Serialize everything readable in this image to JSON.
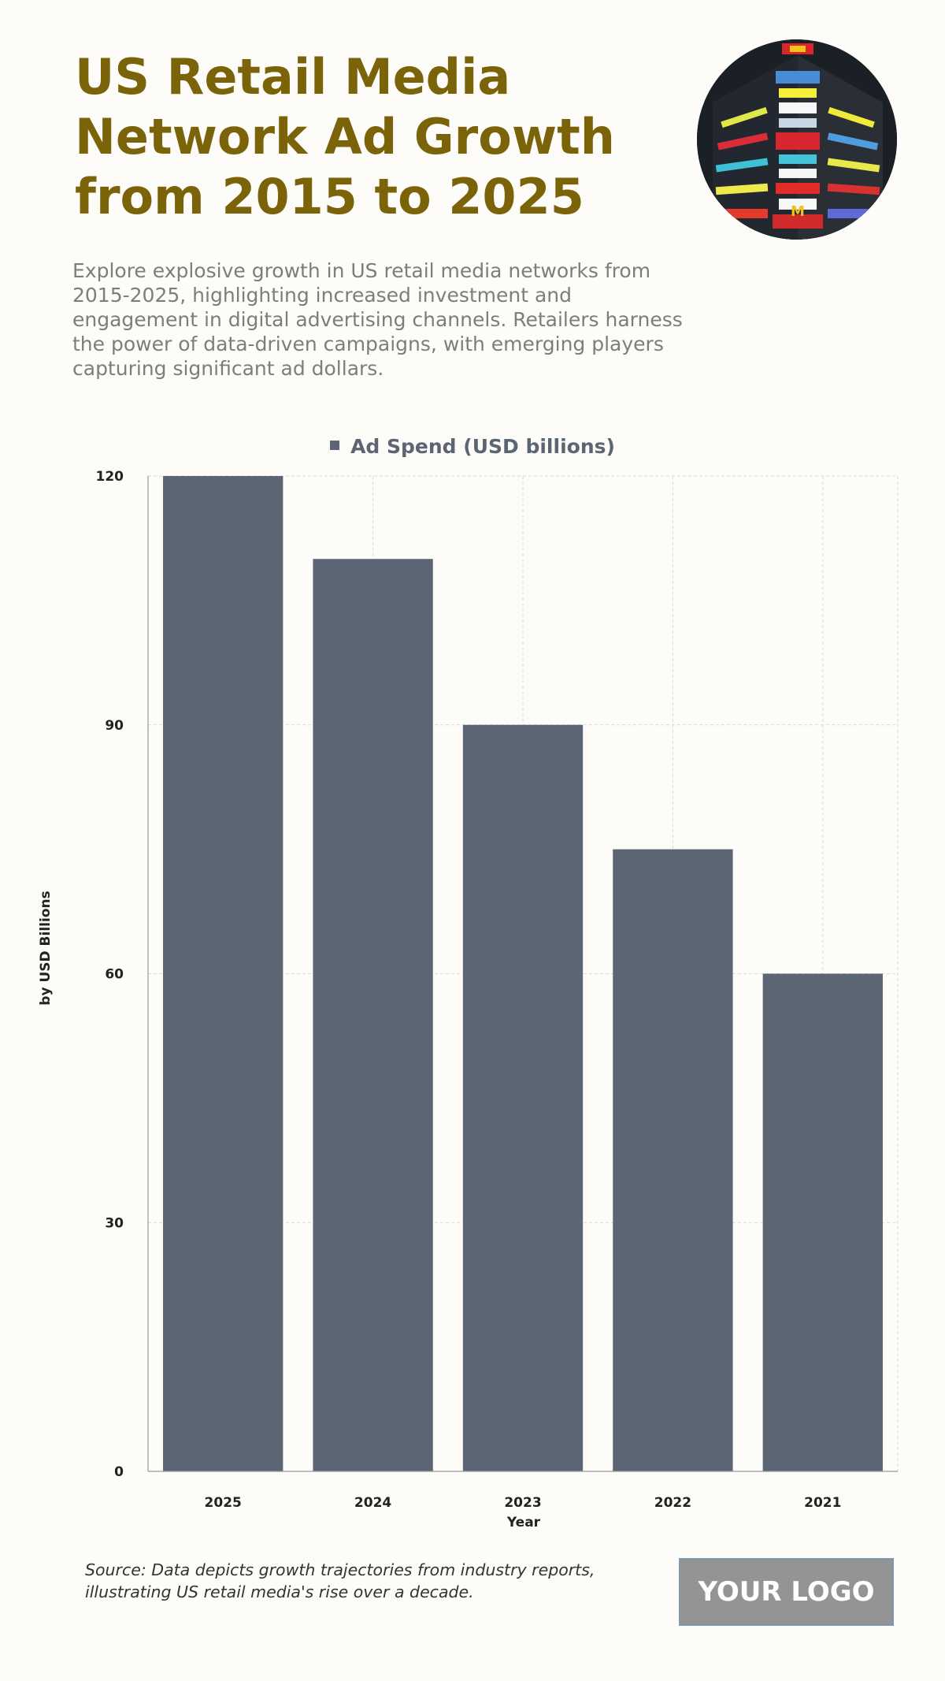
{
  "header": {
    "title": "US Retail Media Network Ad Growth from 2015 to 2025",
    "description": "Explore explosive growth in US retail media networks from 2015-2025, highlighting increased investment and engagement in digital advertising channels. Retailers harness the power of data-driven campaigns, with emerging players capturing significant ad dollars."
  },
  "chart_data": {
    "type": "bar",
    "categories": [
      "2025",
      "2024",
      "2023",
      "2022",
      "2021"
    ],
    "series": [
      {
        "name": "Ad Spend (USD billions)",
        "values": [
          120,
          110,
          90,
          75,
          60
        ]
      }
    ],
    "xlabel": "Year",
    "ylabel": "by USD Billions",
    "ylim": [
      0,
      120
    ],
    "yticks": [
      0,
      30,
      60,
      90,
      120
    ],
    "grid": true,
    "legend_position": "top-center",
    "bar_color": "#5b6574"
  },
  "footer": {
    "source_note": "Source: Data depicts growth trajectories from industry reports, illustrating US retail media's rise over a decade.",
    "logo_text": "YOUR LOGO"
  },
  "colors": {
    "title": "#7a6308",
    "bar": "#5b6574",
    "background": "#fdfcf8"
  }
}
